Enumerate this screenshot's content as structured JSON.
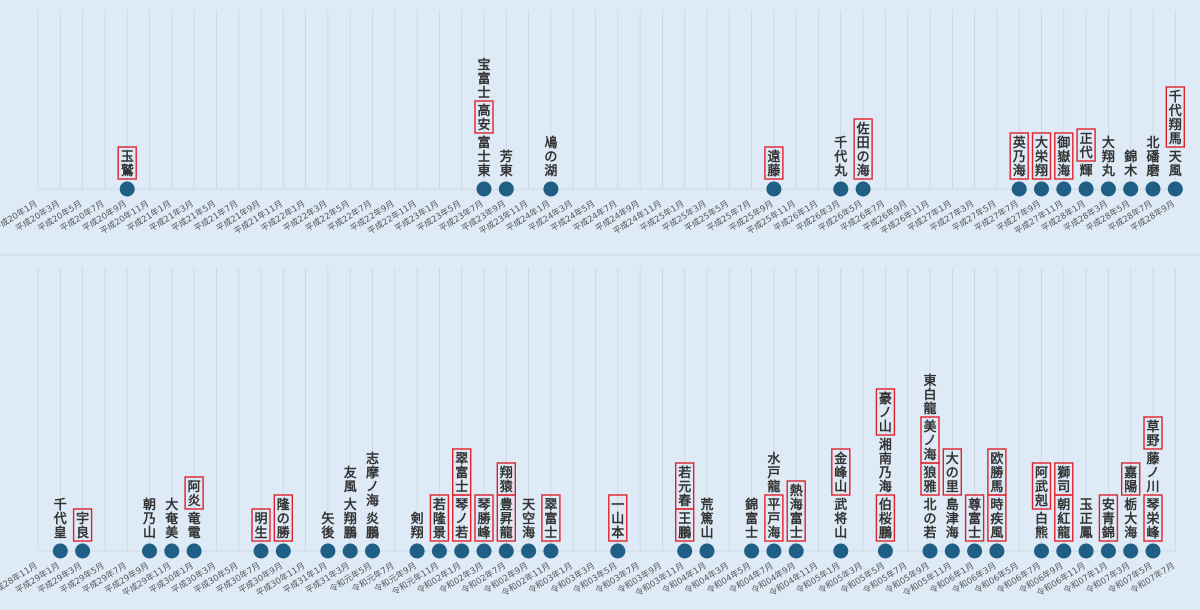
{
  "chart_data": [
    {
      "type": "scatter",
      "categories": [
        "平成20年1月",
        "平成20年3月",
        "平成20年5月",
        "平成20年7月",
        "平成20年9月",
        "平成20年11月",
        "平成21年1月",
        "平成21年3月",
        "平成21年5月",
        "平成21年7月",
        "平成21年9月",
        "平成21年11月",
        "平成22年1月",
        "平成22年3月",
        "平成22年5月",
        "平成22年7月",
        "平成22年9月",
        "平成22年11月",
        "平成23年1月",
        "平成23年5月",
        "平成23年7月",
        "平成23年9月",
        "平成23年11月",
        "平成24年1月",
        "平成24年3月",
        "平成24年5月",
        "平成24年7月",
        "平成24年9月",
        "平成24年11月",
        "平成25年1月",
        "平成25年3月",
        "平成25年5月",
        "平成25年7月",
        "平成25年9月",
        "平成25年11月",
        "平成26年1月",
        "平成26年3月",
        "平成26年5月",
        "平成26年7月",
        "平成26年9月",
        "平成26年11月",
        "平成27年1月",
        "平成27年3月",
        "平成27年5月",
        "平成27年7月",
        "平成27年9月",
        "平成27年11月",
        "平成28年1月",
        "平成28年3月",
        "平成28年5月",
        "平成28年7月",
        "平成28年9月"
      ],
      "points": [
        {
          "i": 4,
          "names": [
            {
              "t": "玉鷲",
              "box": true
            }
          ]
        },
        {
          "i": 20,
          "names": [
            {
              "t": "宝富士",
              "box": false
            },
            {
              "t": "高安",
              "box": true
            },
            {
              "t": "富士東",
              "box": false
            }
          ]
        },
        {
          "i": 21,
          "names": [
            {
              "t": "芳東",
              "box": false
            }
          ]
        },
        {
          "i": 23,
          "names": [
            {
              "t": "鳰の湖",
              "box": false
            }
          ]
        },
        {
          "i": 33,
          "names": [
            {
              "t": "遠藤",
              "box": true
            }
          ]
        },
        {
          "i": 36,
          "names": [
            {
              "t": "千代丸",
              "box": false
            }
          ]
        },
        {
          "i": 37,
          "names": [
            {
              "t": "佐田の海",
              "box": true
            }
          ]
        },
        {
          "i": 44,
          "names": [
            {
              "t": "英乃海",
              "box": true
            }
          ]
        },
        {
          "i": 45,
          "names": [
            {
              "t": "大栄翔",
              "box": true
            }
          ]
        },
        {
          "i": 46,
          "names": [
            {
              "t": "御嶽海",
              "box": true
            }
          ]
        },
        {
          "i": 47,
          "names": [
            {
              "t": "正代",
              "box": true
            },
            {
              "t": "輝",
              "box": false
            }
          ]
        },
        {
          "i": 48,
          "names": [
            {
              "t": "大翔丸",
              "box": false
            }
          ]
        },
        {
          "i": 49,
          "names": [
            {
              "t": "錦木",
              "box": false
            }
          ]
        },
        {
          "i": 50,
          "names": [
            {
              "t": "北磻磨",
              "box": false
            }
          ]
        },
        {
          "i": 51,
          "names": [
            {
              "t": "千代翔馬",
              "box": true
            },
            {
              "t": "天風",
              "box": false
            }
          ]
        }
      ]
    },
    {
      "type": "scatter",
      "categories": [
        "平成28年11月",
        "平成29年1月",
        "平成29年3月",
        "平成29年5月",
        "平成29年7月",
        "平成29年9月",
        "平成29年11月",
        "平成30年1月",
        "平成30年3月",
        "平成30年5月",
        "平成30年7月",
        "平成30年9月",
        "平成30年11月",
        "平成31年1月",
        "平成31年3月",
        "令和元年5月",
        "令和元年7月",
        "令和元年9月",
        "令和元年11月",
        "令和02年1月",
        "令和02年3月",
        "令和02年7月",
        "令和02年9月",
        "令和02年11月",
        "令和03年1月",
        "令和03年3月",
        "令和03年5月",
        "令和03年7月",
        "令和03年9月",
        "令和03年11月",
        "令和04年1月",
        "令和04年3月",
        "令和04年5月",
        "令和04年7月",
        "令和04年9月",
        "令和04年11月",
        "令和05年1月",
        "令和05年3月",
        "令和05年5月",
        "令和05年7月",
        "令和05年9月",
        "令和05年11月",
        "令和06年1月",
        "令和06年3月",
        "令和06年5月",
        "令和06年7月",
        "令和06年9月",
        "令和06年11月",
        "令和07年1月",
        "令和07年3月",
        "令和07年5月",
        "令和07年7月"
      ],
      "points": [
        {
          "i": 1,
          "names": [
            {
              "t": "千代皇",
              "box": false
            }
          ]
        },
        {
          "i": 2,
          "names": [
            {
              "t": "宇良",
              "box": true
            }
          ]
        },
        {
          "i": 5,
          "names": [
            {
              "t": "朝乃山",
              "box": false
            }
          ]
        },
        {
          "i": 6,
          "names": [
            {
              "t": "大奄美",
              "box": false
            }
          ]
        },
        {
          "i": 7,
          "names": [
            {
              "t": "阿炎",
              "box": true
            },
            {
              "t": "竜電",
              "box": false
            }
          ]
        },
        {
          "i": 10,
          "names": [
            {
              "t": "明生",
              "box": true
            }
          ]
        },
        {
          "i": 11,
          "names": [
            {
              "t": "隆の勝",
              "box": true
            }
          ]
        },
        {
          "i": 13,
          "names": [
            {
              "t": "矢後",
              "box": false
            }
          ]
        },
        {
          "i": 14,
          "names": [
            {
              "t": "友風",
              "box": false
            },
            {
              "t": "大翔鵬",
              "box": false
            }
          ]
        },
        {
          "i": 15,
          "names": [
            {
              "t": "志摩ノ海",
              "box": false
            },
            {
              "t": "炎鵬",
              "box": false
            }
          ]
        },
        {
          "i": 17,
          "names": [
            {
              "t": "剣翔",
              "box": false
            }
          ]
        },
        {
          "i": 18,
          "names": [
            {
              "t": "若隆景",
              "box": true
            }
          ]
        },
        {
          "i": 19,
          "names": [
            {
              "t": "翠富士",
              "box": true
            },
            {
              "t": "琴ノ若",
              "box": true
            }
          ]
        },
        {
          "i": 20,
          "names": [
            {
              "t": "琴勝峰",
              "box": true
            }
          ]
        },
        {
          "i": 21,
          "names": [
            {
              "t": "翔猿",
              "box": true
            },
            {
              "t": "豊昇龍",
              "box": true
            }
          ]
        },
        {
          "i": 22,
          "names": [
            {
              "t": "天空海",
              "box": false
            }
          ]
        },
        {
          "i": 23,
          "names": [
            {
              "t": "翠富士",
              "box": true
            }
          ]
        },
        {
          "i": 26,
          "names": [
            {
              "t": "一山本",
              "box": true
            }
          ]
        },
        {
          "i": 29,
          "names": [
            {
              "t": "若元春",
              "box": true
            },
            {
              "t": "王鵬",
              "box": true
            }
          ]
        },
        {
          "i": 30,
          "names": [
            {
              "t": "荒篤山",
              "box": false
            }
          ]
        },
        {
          "i": 32,
          "names": [
            {
              "t": "錦富士",
              "box": false
            }
          ]
        },
        {
          "i": 33,
          "names": [
            {
              "t": "水戸龍",
              "box": false
            },
            {
              "t": "平戸海",
              "box": true
            }
          ]
        },
        {
          "i": 34,
          "names": [
            {
              "t": "熱海富士",
              "box": true
            }
          ]
        },
        {
          "i": 36,
          "names": [
            {
              "t": "金峰山",
              "box": true
            },
            {
              "t": "武将山",
              "box": false
            }
          ]
        },
        {
          "i": 38,
          "names": [
            {
              "t": "豪ノ山",
              "box": true
            },
            {
              "t": "湘南乃海",
              "box": false
            },
            {
              "t": "伯桜鵬",
              "box": true
            }
          ]
        },
        {
          "i": 40,
          "names": [
            {
              "t": "東白龍",
              "box": false
            },
            {
              "t": "美ノ海",
              "box": true
            },
            {
              "t": "狼雅",
              "box": true
            },
            {
              "t": "北の若",
              "box": false
            }
          ]
        },
        {
          "i": 41,
          "names": [
            {
              "t": "大の里",
              "box": true
            },
            {
              "t": "島津海",
              "box": false
            }
          ]
        },
        {
          "i": 42,
          "names": [
            {
              "t": "尊富士",
              "box": true
            }
          ]
        },
        {
          "i": 43,
          "names": [
            {
              "t": "欧勝馬",
              "box": true
            },
            {
              "t": "時疾風",
              "box": true
            }
          ]
        },
        {
          "i": 45,
          "names": [
            {
              "t": "阿武剋",
              "box": true
            },
            {
              "t": "白熊",
              "box": false
            }
          ]
        },
        {
          "i": 46,
          "names": [
            {
              "t": "獅司",
              "box": true
            },
            {
              "t": "朝紅龍",
              "box": true
            }
          ]
        },
        {
          "i": 47,
          "names": [
            {
              "t": "玉正鳳",
              "box": false
            }
          ]
        },
        {
          "i": 48,
          "names": [
            {
              "t": "安青錦",
              "box": true
            }
          ]
        },
        {
          "i": 49,
          "names": [
            {
              "t": "嘉陽",
              "box": true
            },
            {
              "t": "栃大海",
              "box": false
            }
          ]
        },
        {
          "i": 50,
          "names": [
            {
              "t": "草野",
              "box": true
            },
            {
              "t": "藤ノ川",
              "box": false
            },
            {
              "t": "琴栄峰",
              "box": true
            }
          ]
        }
      ]
    }
  ]
}
